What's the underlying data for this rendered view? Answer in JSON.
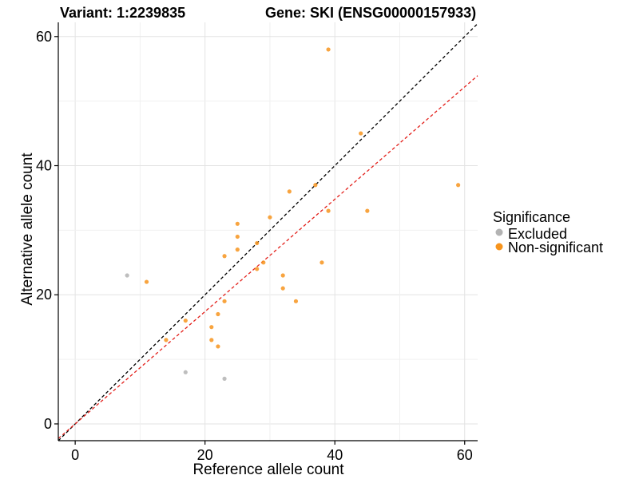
{
  "chart_data": {
    "type": "scatter",
    "title_left": "Variant: 1:2239835",
    "title_right": "Gene: SKI (ENSG00000157933)",
    "xlabel": "Reference allele count",
    "ylabel": "Alternative allele count",
    "xlim": [
      -2.6,
      62
    ],
    "ylim": [
      -2.6,
      62.2
    ],
    "x_ticks": [
      0,
      20,
      40,
      60
    ],
    "y_ticks": [
      0,
      20,
      40,
      60
    ],
    "grid": true,
    "legend": {
      "title": "Significance",
      "position": "right",
      "entries": [
        {
          "name": "Excluded",
          "color": "#b3b3b3"
        },
        {
          "name": "Non-significant",
          "color": "#f7941d"
        }
      ]
    },
    "reference_lines": [
      {
        "slope": 1.0,
        "intercept": 0,
        "color": "#000000",
        "style": "dashed"
      },
      {
        "slope": 0.87,
        "intercept": 0,
        "color": "#e3201b",
        "style": "dashed"
      }
    ],
    "series": [
      {
        "name": "Excluded",
        "color": "#b3b3b3",
        "points": [
          [
            8,
            23
          ],
          [
            17,
            8
          ],
          [
            23,
            7
          ]
        ]
      },
      {
        "name": "Non-significant",
        "color": "#f7941d",
        "points": [
          [
            11,
            22
          ],
          [
            14,
            13
          ],
          [
            17,
            16
          ],
          [
            21,
            15
          ],
          [
            21,
            13
          ],
          [
            22,
            12
          ],
          [
            22,
            17
          ],
          [
            23,
            19
          ],
          [
            23,
            26
          ],
          [
            25,
            31
          ],
          [
            25,
            29
          ],
          [
            25,
            27
          ],
          [
            28,
            28
          ],
          [
            28,
            24
          ],
          [
            29,
            25
          ],
          [
            30,
            32
          ],
          [
            32,
            23
          ],
          [
            32,
            21
          ],
          [
            33,
            36
          ],
          [
            34,
            19
          ],
          [
            37,
            37
          ],
          [
            38,
            25
          ],
          [
            39,
            58
          ],
          [
            39,
            33
          ],
          [
            44,
            45
          ],
          [
            45,
            33
          ],
          [
            59,
            37
          ]
        ]
      }
    ]
  }
}
